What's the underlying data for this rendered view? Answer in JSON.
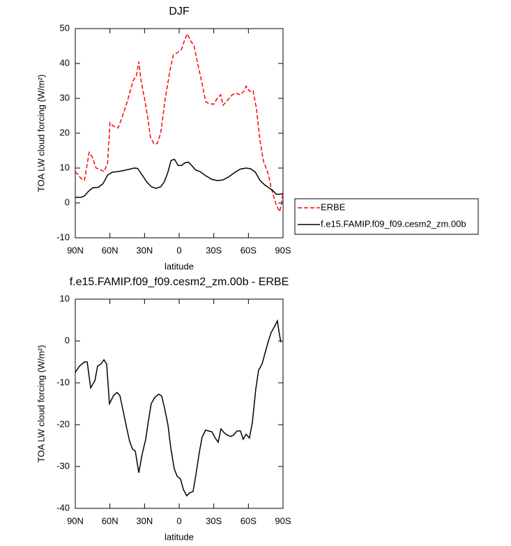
{
  "chart_data": [
    {
      "type": "line",
      "title": "DJF",
      "xlabel": "latitude",
      "ylabel": "TOA LW cloud forcing (W/m²)",
      "xlim": [
        90,
        -90
      ],
      "ylim": [
        -10,
        50
      ],
      "xticks": [
        {
          "value": 90,
          "label": "90N"
        },
        {
          "value": 60,
          "label": "60N"
        },
        {
          "value": 30,
          "label": "30N"
        },
        0,
        {
          "value": -30,
          "label": "30S"
        },
        {
          "value": -60,
          "label": "60S"
        },
        {
          "value": -90,
          "label": "90S"
        }
      ],
      "yticks": [
        -10,
        0,
        10,
        20,
        30,
        40,
        50
      ],
      "legend": "outside-right",
      "series": [
        {
          "name": "ERBE",
          "color": "#ff0000",
          "linestyle": "dashed",
          "x": [
            90,
            85,
            82,
            78,
            75,
            72,
            68,
            65,
            62,
            60,
            57,
            53,
            50,
            45,
            40,
            37,
            35,
            33,
            30,
            27,
            25,
            22,
            19,
            16,
            12,
            8,
            5,
            2,
            -2,
            -5,
            -7,
            -10,
            -13,
            -16,
            -20,
            -23,
            -26,
            -30,
            -33,
            -36,
            -38,
            -42,
            -46,
            -49,
            -53,
            -56,
            -58,
            -61,
            -64,
            -67,
            -70,
            -73,
            -77,
            -80,
            -84,
            -87,
            -88.5,
            -90
          ],
          "values": [
            9,
            7,
            6.5,
            14.5,
            13,
            10,
            9.5,
            9,
            11.5,
            23,
            22,
            21.5,
            24,
            29,
            35,
            36.5,
            40.5,
            35,
            30,
            24,
            19,
            17,
            17,
            20,
            30,
            38,
            42.5,
            43,
            44,
            47,
            48.5,
            46.5,
            45,
            40,
            34,
            29,
            28.5,
            28.3,
            30,
            31,
            28,
            29.5,
            31,
            31.5,
            31,
            32,
            33.5,
            32,
            32.3,
            27,
            18,
            12,
            8.5,
            4,
            -0.5,
            -2.5,
            -0.5,
            3
          ]
        },
        {
          "name": "f.e15.FAMIP.f09_f09.cesm2_zm.00b",
          "color": "#000000",
          "linestyle": "solid",
          "x": [
            90,
            85,
            82,
            79,
            75,
            70,
            66,
            62,
            58,
            53,
            48,
            44,
            39,
            36,
            32,
            28,
            24,
            20,
            16,
            13,
            10,
            7,
            4,
            1,
            -2,
            -5,
            -8,
            -11,
            -14,
            -18,
            -23,
            -28,
            -33,
            -38,
            -43,
            -48,
            -53,
            -58,
            -62,
            -66,
            -70,
            -74,
            -78,
            -81,
            -84,
            -87,
            -90
          ],
          "values": [
            1.6,
            1.6,
            2,
            3.2,
            4.3,
            4.5,
            5.5,
            8,
            8.8,
            9,
            9.3,
            9.6,
            10,
            9.9,
            8,
            6,
            4.6,
            4.2,
            4.6,
            6,
            8.5,
            12.2,
            12.5,
            10.8,
            10.7,
            11.5,
            11.7,
            10.7,
            9.5,
            9,
            7.8,
            6.8,
            6.4,
            6.6,
            7.5,
            8.7,
            9.7,
            10,
            9.8,
            8.8,
            6.5,
            5.2,
            4.3,
            3.6,
            2.5,
            2.5,
            2.6
          ]
        }
      ]
    },
    {
      "type": "line",
      "title": "f.e15.FAMIP.f09_f09.cesm2_zm.00b - ERBE",
      "xlabel": "latitude",
      "ylabel": "TOA LW cloud forcing (W/m²)",
      "xlim": [
        90,
        -90
      ],
      "ylim": [
        -40,
        10
      ],
      "xticks": [
        {
          "value": 90,
          "label": "90N"
        },
        {
          "value": 60,
          "label": "60N"
        },
        {
          "value": 30,
          "label": "30N"
        },
        0,
        {
          "value": -30,
          "label": "30S"
        },
        {
          "value": -60,
          "label": "60S"
        },
        {
          "value": -90,
          "label": "90S"
        }
      ],
      "yticks": [
        -40,
        -30,
        -20,
        -10,
        0,
        10
      ],
      "series": [
        {
          "color": "#000000",
          "linestyle": "solid",
          "x": [
            90,
            86.4,
            82,
            79.7,
            76.7,
            73,
            70.7,
            67.7,
            65.2,
            62.8,
            60.4,
            56.8,
            53.8,
            51.4,
            48.3,
            45.3,
            42.9,
            40.5,
            38,
            35,
            32,
            29,
            26.6,
            24.2,
            21.2,
            17.5,
            15.1,
            12.7,
            9.7,
            7.3,
            4.3,
            1.8,
            -1.2,
            -3.6,
            -6.6,
            -9,
            -12,
            -14.5,
            -17.5,
            -19.9,
            -22.9,
            -25.3,
            -28.4,
            -30.8,
            -33.8,
            -36.2,
            -39.2,
            -41.6,
            -44.7,
            -47.1,
            -50.1,
            -53.1,
            -55.5,
            -57.9,
            -60.9,
            -63.4,
            -66.4,
            -68.8,
            -71.8,
            -74.3,
            -77.3,
            -79.7,
            -82.7,
            -85.1,
            -86.9,
            -88.1
          ],
          "values": [
            -7.5,
            -6,
            -5,
            -5,
            -11.2,
            -9.5,
            -6,
            -5.5,
            -4.5,
            -5.5,
            -15,
            -13,
            -12.3,
            -13,
            -17,
            -21,
            -24,
            -25.8,
            -26.3,
            -31.5,
            -27,
            -23.5,
            -19,
            -15,
            -13.5,
            -12.7,
            -13.2,
            -16,
            -20,
            -25.5,
            -30.5,
            -32.3,
            -33,
            -35.5,
            -37,
            -36.3,
            -36,
            -32,
            -26.5,
            -23,
            -21.3,
            -21.5,
            -21.7,
            -23,
            -24.2,
            -21,
            -22,
            -22.5,
            -22.8,
            -22.5,
            -21.5,
            -21.5,
            -23.5,
            -22.3,
            -23.2,
            -19.5,
            -11.5,
            -7,
            -5.5,
            -3,
            0,
            2,
            3.5,
            4.8,
            1.5,
            -0.3
          ]
        }
      ]
    }
  ]
}
